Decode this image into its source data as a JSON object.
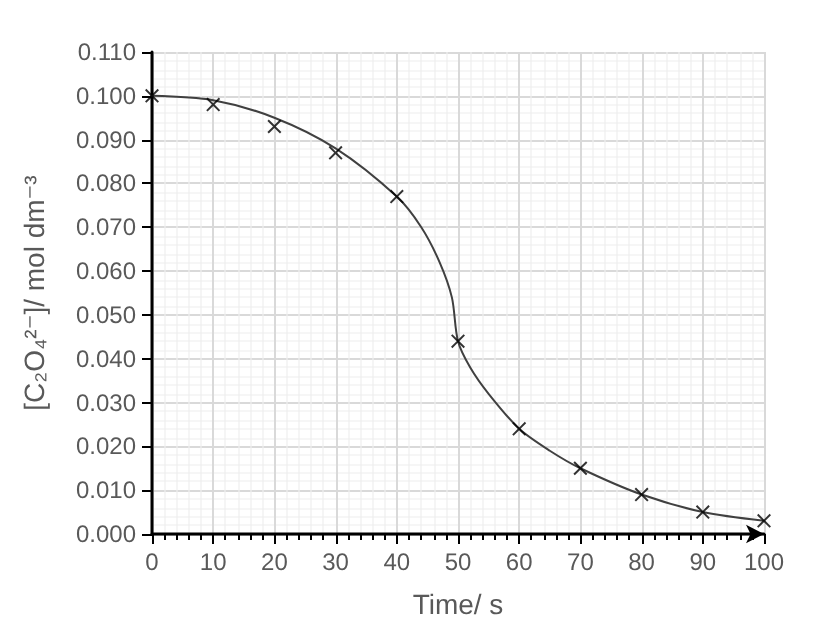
{
  "chart_data": {
    "type": "scatter",
    "xlabel": "Time/ s",
    "ylabel": "[C₂O₄²⁻]/ mol dm⁻³",
    "xlim": [
      0,
      100
    ],
    "xticks": [
      0,
      10,
      20,
      30,
      40,
      50,
      60,
      70,
      80,
      90,
      100
    ],
    "ylim": [
      0,
      0.11
    ],
    "yticks": [
      {
        "value": 0,
        "label": "0.000"
      },
      {
        "value": 0.01,
        "label": "0.010"
      },
      {
        "value": 0.02,
        "label": "0.020"
      },
      {
        "value": 0.03,
        "label": "0.030"
      },
      {
        "value": 0.04,
        "label": "0.040"
      },
      {
        "value": 0.05,
        "label": "0.050"
      },
      {
        "value": 0.06,
        "label": "0.060"
      },
      {
        "value": 0.07,
        "label": "0.070"
      },
      {
        "value": 0.08,
        "label": "0.080"
      },
      {
        "value": 0.09,
        "label": "0.090"
      },
      {
        "value": 0.1,
        "label": "0.100"
      },
      {
        "value": 0.11,
        "label": "0.110"
      }
    ],
    "grid": true,
    "series": [
      {
        "color": "#000000",
        "marker": "cross",
        "x": [
          0,
          10,
          20,
          30,
          40,
          50,
          60,
          70,
          80,
          90,
          100
        ],
        "values": [
          0.1,
          0.098,
          0.093,
          0.087,
          0.077,
          0.044,
          0.024,
          0.015,
          0.009,
          0.005,
          0.003
        ]
      },
      {
        "type": "line",
        "color": "#404040",
        "marker": "none",
        "line_style": "solid",
        "x": [
          0,
          10,
          20,
          30,
          40,
          44,
          47,
          49,
          50,
          52,
          55,
          60,
          65,
          70,
          80,
          90,
          100
        ],
        "values": [
          0.1,
          0.099,
          0.095,
          0.088,
          0.077,
          0.07,
          0.062,
          0.054,
          0.044,
          0.038,
          0.032,
          0.024,
          0.019,
          0.015,
          0.009,
          0.005,
          0.003
        ]
      }
    ]
  }
}
